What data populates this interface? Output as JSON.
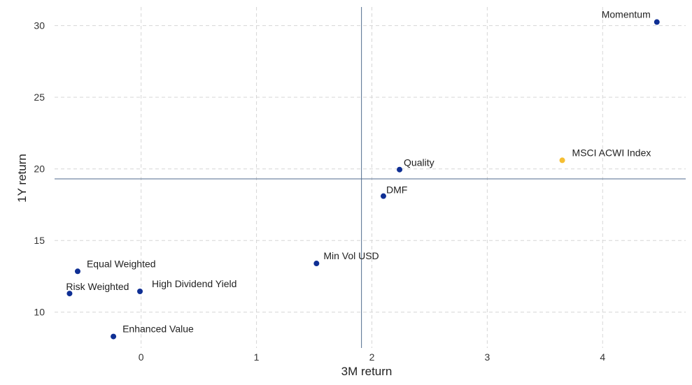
{
  "chart_data": {
    "type": "scatter",
    "title": "",
    "xlabel": "3M return",
    "ylabel": "1Y return",
    "xlim": [
      -0.75,
      4.72
    ],
    "ylim": [
      7.5,
      31.3
    ],
    "x_ticks": [
      0,
      1,
      2,
      3,
      4
    ],
    "y_ticks": [
      10,
      15,
      20,
      25,
      30
    ],
    "grid": true,
    "reference_lines": {
      "x": 1.91,
      "y": 19.3
    },
    "colors": {
      "default_point": "#0f2f94",
      "highlight_point": "#f5be32",
      "reference_line": "#4f6a8c",
      "grid": "#d6d6d6"
    },
    "points": [
      {
        "label": "Momentum",
        "x": 4.47,
        "y": 30.25,
        "highlight": false
      },
      {
        "label": "MSCI ACWI Index",
        "x": 3.65,
        "y": 20.6,
        "highlight": true
      },
      {
        "label": "Quality",
        "x": 2.24,
        "y": 19.95,
        "highlight": false
      },
      {
        "label": "DMF",
        "x": 2.1,
        "y": 18.1,
        "highlight": false
      },
      {
        "label": "Min Vol USD",
        "x": 1.52,
        "y": 13.4,
        "highlight": false
      },
      {
        "label": "Equal Weighted",
        "x": -0.55,
        "y": 12.85,
        "highlight": false
      },
      {
        "label": "Risk Weighted",
        "x": -0.62,
        "y": 11.3,
        "highlight": false
      },
      {
        "label": "High Dividend Yield",
        "x": -0.01,
        "y": 11.45,
        "highlight": false
      },
      {
        "label": "Enhanced Value",
        "x": -0.24,
        "y": 8.3,
        "highlight": false
      }
    ]
  }
}
